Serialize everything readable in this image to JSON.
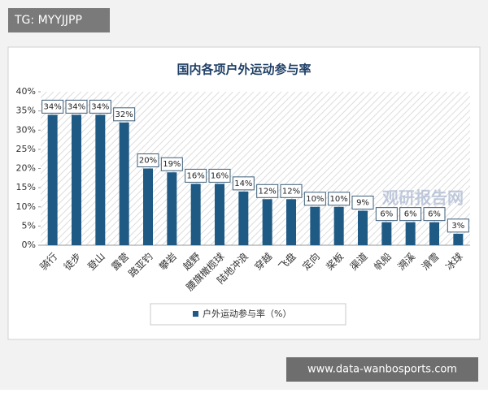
{
  "chart_data": {
    "type": "bar",
    "title": "国内各项户外运动参与率",
    "categories": [
      "骑行",
      "徒步",
      "登山",
      "露营",
      "路亚钓",
      "攀岩",
      "越野",
      "腰旗橄榄球",
      "陆地冲浪",
      "穿越",
      "飞盘",
      "定向",
      "桨板",
      "渠道",
      "帆船",
      "溯溪",
      "滑雪",
      "冰球"
    ],
    "series": [
      {
        "name": "户外运动参与率（%）",
        "color": "#1f5a85",
        "values": [
          34,
          34,
          34,
          32,
          20,
          19,
          16,
          16,
          14,
          12,
          12,
          10,
          10,
          9,
          6,
          6,
          6,
          3
        ],
        "value_labels": [
          "34%",
          "34%",
          "34%",
          "32%",
          "20%",
          "19%",
          "16%",
          "16%",
          "14%",
          "12%",
          "12%",
          "10%",
          "10%",
          "9%",
          "6%",
          "6%",
          "6%",
          "3%"
        ]
      }
    ],
    "ylim": [
      0,
      40
    ],
    "yticks": [
      {
        "value": 0,
        "label": "0%"
      },
      {
        "value": 5,
        "label": "5%"
      },
      {
        "value": 10,
        "label": "10%"
      },
      {
        "value": 15,
        "label": "15%"
      },
      {
        "value": 20,
        "label": "20%"
      },
      {
        "value": 25,
        "label": "25%"
      },
      {
        "value": 30,
        "label": "30%"
      },
      {
        "value": 35,
        "label": "35%"
      },
      {
        "value": 40,
        "label": "40%"
      }
    ],
    "annotations": [
      "TG: MYYJJPP",
      "观研报告网",
      "www.data-wanbosports.com"
    ]
  }
}
